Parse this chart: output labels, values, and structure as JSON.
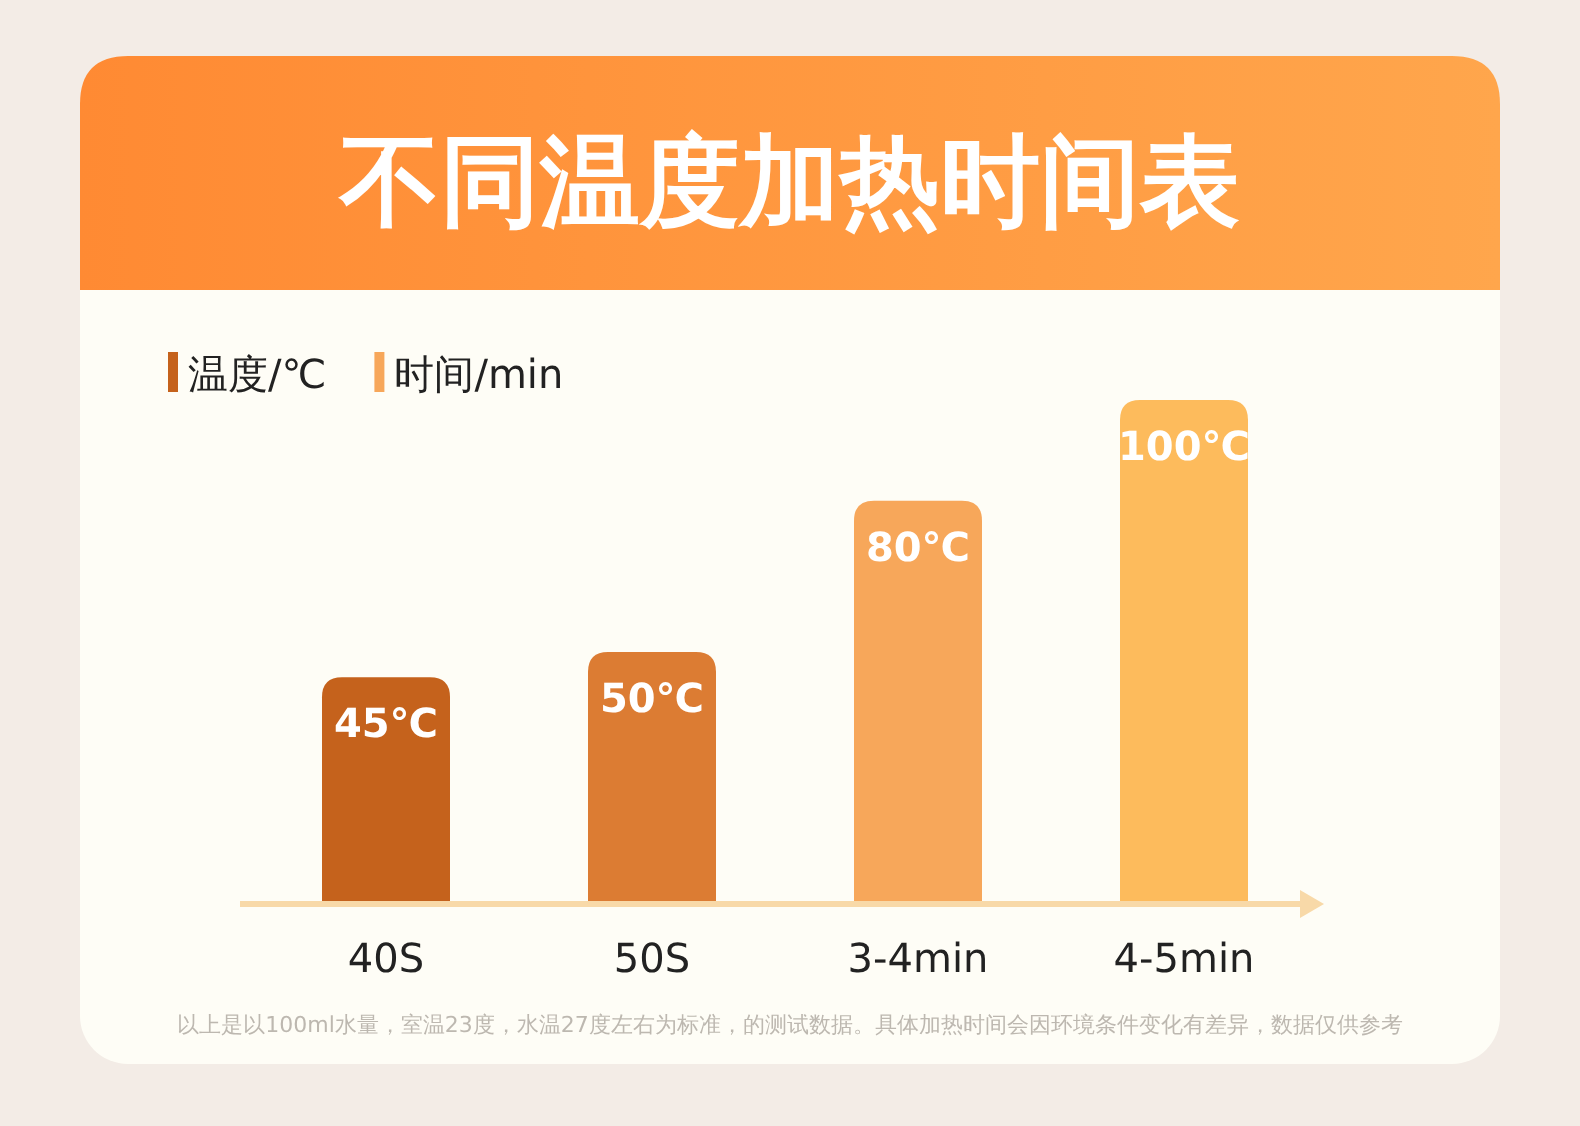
{
  "chart_data": {
    "type": "bar",
    "title": "不同温度加热时间表",
    "ylabel": "温度/℃",
    "xlabel": "时间/min",
    "categories": [
      "40S",
      "50S",
      "3-4min",
      "4-5min"
    ],
    "values": [
      45,
      50,
      80,
      100
    ],
    "value_labels": [
      "45℃",
      "50℃",
      "80℃",
      "100℃"
    ],
    "colors": [
      "#c5621c",
      "#dc7c33",
      "#f7a75a",
      "#fdbb5c"
    ],
    "annotations": [
      "以上是以100ml水量，室温23度，水温27度左右为标准，的测试数据。具体加热时间会因环境条件变化有差异，数据仅供参考"
    ]
  }
}
